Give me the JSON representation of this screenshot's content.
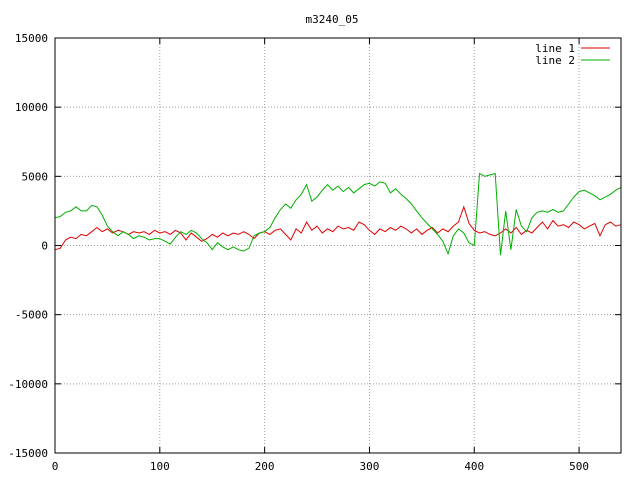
{
  "chart_data": {
    "type": "line",
    "title": "m3240_05",
    "xlabel": "",
    "ylabel": "",
    "xlim": [
      0,
      540
    ],
    "ylim": [
      -15000,
      15000
    ],
    "x_ticks": [
      0,
      100,
      200,
      300,
      400,
      500
    ],
    "y_ticks": [
      -15000,
      -10000,
      -5000,
      0,
      5000,
      10000,
      15000
    ],
    "grid": true,
    "legend_position": "top-right",
    "series": [
      {
        "name": "line 1",
        "color": "#e00000",
        "points": [
          [
            0,
            -300
          ],
          [
            5,
            -200
          ],
          [
            10,
            400
          ],
          [
            15,
            600
          ],
          [
            20,
            500
          ],
          [
            25,
            800
          ],
          [
            30,
            700
          ],
          [
            35,
            1000
          ],
          [
            40,
            1300
          ],
          [
            45,
            1000
          ],
          [
            50,
            1200
          ],
          [
            55,
            900
          ],
          [
            60,
            1100
          ],
          [
            65,
            1000
          ],
          [
            70,
            800
          ],
          [
            75,
            1000
          ],
          [
            80,
            900
          ],
          [
            85,
            1000
          ],
          [
            90,
            800
          ],
          [
            95,
            1100
          ],
          [
            100,
            900
          ],
          [
            105,
            1000
          ],
          [
            110,
            800
          ],
          [
            115,
            1100
          ],
          [
            120,
            900
          ],
          [
            125,
            400
          ],
          [
            130,
            900
          ],
          [
            135,
            600
          ],
          [
            140,
            300
          ],
          [
            145,
            500
          ],
          [
            150,
            800
          ],
          [
            155,
            600
          ],
          [
            160,
            900
          ],
          [
            165,
            700
          ],
          [
            170,
            900
          ],
          [
            175,
            800
          ],
          [
            180,
            1000
          ],
          [
            185,
            800
          ],
          [
            190,
            500
          ],
          [
            195,
            900
          ],
          [
            200,
            1000
          ],
          [
            205,
            800
          ],
          [
            210,
            1100
          ],
          [
            215,
            1200
          ],
          [
            220,
            800
          ],
          [
            225,
            400
          ],
          [
            230,
            1200
          ],
          [
            235,
            900
          ],
          [
            240,
            1700
          ],
          [
            245,
            1100
          ],
          [
            250,
            1400
          ],
          [
            255,
            900
          ],
          [
            260,
            1200
          ],
          [
            265,
            1000
          ],
          [
            270,
            1400
          ],
          [
            275,
            1200
          ],
          [
            280,
            1300
          ],
          [
            285,
            1100
          ],
          [
            290,
            1700
          ],
          [
            295,
            1500
          ],
          [
            300,
            1100
          ],
          [
            305,
            800
          ],
          [
            310,
            1200
          ],
          [
            315,
            1000
          ],
          [
            320,
            1300
          ],
          [
            325,
            1100
          ],
          [
            330,
            1400
          ],
          [
            335,
            1200
          ],
          [
            340,
            900
          ],
          [
            345,
            1200
          ],
          [
            350,
            800
          ],
          [
            355,
            1100
          ],
          [
            360,
            1300
          ],
          [
            365,
            900
          ],
          [
            370,
            1200
          ],
          [
            375,
            1000
          ],
          [
            380,
            1400
          ],
          [
            385,
            1700
          ],
          [
            390,
            2800
          ],
          [
            395,
            1600
          ],
          [
            400,
            1100
          ],
          [
            405,
            900
          ],
          [
            410,
            1000
          ],
          [
            415,
            800
          ],
          [
            420,
            700
          ],
          [
            425,
            900
          ],
          [
            430,
            1200
          ],
          [
            435,
            900
          ],
          [
            440,
            1300
          ],
          [
            445,
            800
          ],
          [
            450,
            1100
          ],
          [
            455,
            900
          ],
          [
            460,
            1300
          ],
          [
            465,
            1700
          ],
          [
            470,
            1200
          ],
          [
            475,
            1800
          ],
          [
            480,
            1400
          ],
          [
            485,
            1500
          ],
          [
            490,
            1300
          ],
          [
            495,
            1700
          ],
          [
            500,
            1500
          ],
          [
            505,
            1200
          ],
          [
            510,
            1400
          ],
          [
            515,
            1600
          ],
          [
            520,
            700
          ],
          [
            525,
            1500
          ],
          [
            530,
            1700
          ],
          [
            535,
            1400
          ],
          [
            540,
            1500
          ]
        ]
      },
      {
        "name": "line 2",
        "color": "#00b000",
        "points": [
          [
            0,
            2000
          ],
          [
            5,
            2100
          ],
          [
            10,
            2400
          ],
          [
            15,
            2500
          ],
          [
            20,
            2800
          ],
          [
            25,
            2500
          ],
          [
            30,
            2500
          ],
          [
            35,
            2900
          ],
          [
            40,
            2800
          ],
          [
            45,
            2200
          ],
          [
            50,
            1400
          ],
          [
            55,
            1000
          ],
          [
            60,
            700
          ],
          [
            65,
            1000
          ],
          [
            70,
            800
          ],
          [
            75,
            500
          ],
          [
            80,
            700
          ],
          [
            85,
            600
          ],
          [
            90,
            400
          ],
          [
            95,
            500
          ],
          [
            100,
            500
          ],
          [
            105,
            300
          ],
          [
            110,
            100
          ],
          [
            115,
            600
          ],
          [
            120,
            1000
          ],
          [
            125,
            800
          ],
          [
            130,
            1100
          ],
          [
            135,
            900
          ],
          [
            140,
            500
          ],
          [
            145,
            200
          ],
          [
            150,
            -300
          ],
          [
            155,
            200
          ],
          [
            160,
            -100
          ],
          [
            165,
            -300
          ],
          [
            170,
            -100
          ],
          [
            175,
            -300
          ],
          [
            180,
            -400
          ],
          [
            185,
            -200
          ],
          [
            190,
            700
          ],
          [
            195,
            900
          ],
          [
            200,
            1000
          ],
          [
            205,
            1300
          ],
          [
            210,
            2000
          ],
          [
            215,
            2600
          ],
          [
            220,
            3000
          ],
          [
            225,
            2700
          ],
          [
            230,
            3300
          ],
          [
            235,
            3700
          ],
          [
            240,
            4400
          ],
          [
            245,
            3200
          ],
          [
            250,
            3500
          ],
          [
            255,
            4000
          ],
          [
            260,
            4400
          ],
          [
            265,
            4000
          ],
          [
            270,
            4300
          ],
          [
            275,
            3900
          ],
          [
            280,
            4200
          ],
          [
            285,
            3800
          ],
          [
            290,
            4100
          ],
          [
            295,
            4400
          ],
          [
            300,
            4500
          ],
          [
            305,
            4300
          ],
          [
            310,
            4600
          ],
          [
            315,
            4500
          ],
          [
            320,
            3800
          ],
          [
            325,
            4100
          ],
          [
            330,
            3700
          ],
          [
            335,
            3400
          ],
          [
            340,
            3000
          ],
          [
            345,
            2500
          ],
          [
            350,
            2000
          ],
          [
            355,
            1600
          ],
          [
            360,
            1200
          ],
          [
            365,
            800
          ],
          [
            370,
            300
          ],
          [
            375,
            -600
          ],
          [
            380,
            700
          ],
          [
            385,
            1200
          ],
          [
            390,
            900
          ],
          [
            395,
            200
          ],
          [
            400,
            0
          ],
          [
            405,
            5200
          ],
          [
            410,
            5000
          ],
          [
            415,
            5100
          ],
          [
            420,
            5200
          ],
          [
            425,
            -700
          ],
          [
            430,
            2500
          ],
          [
            435,
            -300
          ],
          [
            440,
            2600
          ],
          [
            445,
            1400
          ],
          [
            450,
            1000
          ],
          [
            455,
            2000
          ],
          [
            460,
            2400
          ],
          [
            465,
            2500
          ],
          [
            470,
            2400
          ],
          [
            475,
            2600
          ],
          [
            480,
            2400
          ],
          [
            485,
            2500
          ],
          [
            490,
            3000
          ],
          [
            495,
            3500
          ],
          [
            500,
            3900
          ],
          [
            505,
            4000
          ],
          [
            510,
            3800
          ],
          [
            515,
            3600
          ],
          [
            520,
            3300
          ],
          [
            525,
            3500
          ],
          [
            530,
            3700
          ],
          [
            535,
            4000
          ],
          [
            540,
            4200
          ]
        ]
      }
    ]
  }
}
